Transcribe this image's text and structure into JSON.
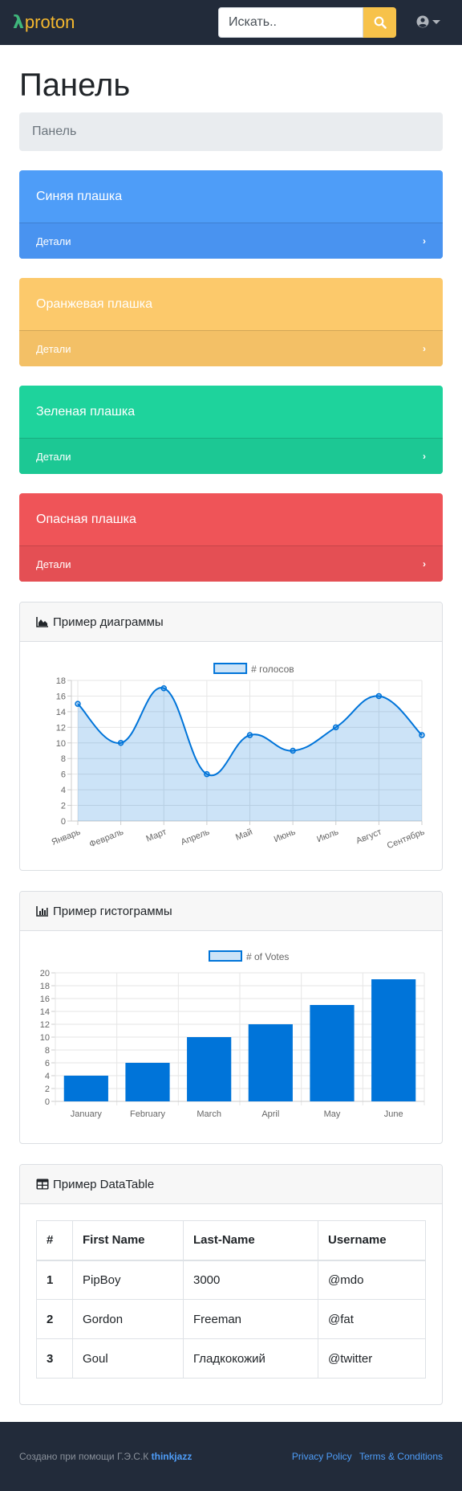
{
  "navbar": {
    "brand_symbol": "λ",
    "brand_name": "proton",
    "search_placeholder": "Искать..",
    "search_icon": "search-icon",
    "user_icon": "user-circle-icon"
  },
  "page": {
    "title": "Панель",
    "breadcrumb": "Панель"
  },
  "tiles": [
    {
      "title": "Синяя плашка",
      "link": "Детали",
      "color": "#4e9df8"
    },
    {
      "title": "Оранжевая плашка",
      "link": "Детали",
      "color": "#fcc96b"
    },
    {
      "title": "Зеленая плашка",
      "link": "Детали",
      "color": "#1ed39c"
    },
    {
      "title": "Опасная плашка",
      "link": "Детали",
      "color": "#ef5458"
    }
  ],
  "line_card": {
    "title": "Пример диаграммы",
    "icon": "area-chart-icon"
  },
  "bar_card": {
    "title": "Пример гистограммы",
    "icon": "bar-chart-icon"
  },
  "table_card": {
    "title": "Пример DataTable",
    "icon": "table-icon",
    "columns": [
      "#",
      "First Name",
      "Last-Name",
      "Username"
    ],
    "rows": [
      [
        "1",
        "PipBoy",
        "3000",
        "@mdo"
      ],
      [
        "2",
        "Gordon",
        "Freeman",
        "@fat"
      ],
      [
        "3",
        "Goul",
        "Гладкокожий",
        "@twitter"
      ]
    ]
  },
  "footer": {
    "made_with": "Создано при помощи Г.Э.С.К",
    "made_with_link": "thinkjazz",
    "privacy": "Privacy Policy",
    "terms": "Terms & Conditions"
  },
  "chart_data": [
    {
      "type": "area",
      "categories": [
        "Январь",
        "Февраль",
        "Март",
        "Апрель",
        "Май",
        "Июнь",
        "Июль",
        "Август",
        "Сентябрь"
      ],
      "series": [
        {
          "name": "# голосов",
          "values": [
            15,
            10,
            17,
            6,
            11,
            9,
            12,
            16,
            11
          ]
        }
      ],
      "ylim": [
        0,
        18
      ],
      "yticks": [
        0,
        2,
        4,
        6,
        8,
        10,
        12,
        14,
        16,
        18
      ],
      "color": "#0074d9",
      "grid": true,
      "legend": "top"
    },
    {
      "type": "bar",
      "categories": [
        "January",
        "February",
        "March",
        "April",
        "May",
        "June"
      ],
      "series": [
        {
          "name": "# of Votes",
          "values": [
            4,
            6,
            10,
            12,
            15,
            19
          ]
        }
      ],
      "ylim": [
        0,
        20
      ],
      "yticks": [
        0,
        2,
        4,
        6,
        8,
        10,
        12,
        14,
        16,
        18,
        20
      ],
      "color": "#0074d9",
      "grid": true,
      "legend": "top"
    }
  ]
}
